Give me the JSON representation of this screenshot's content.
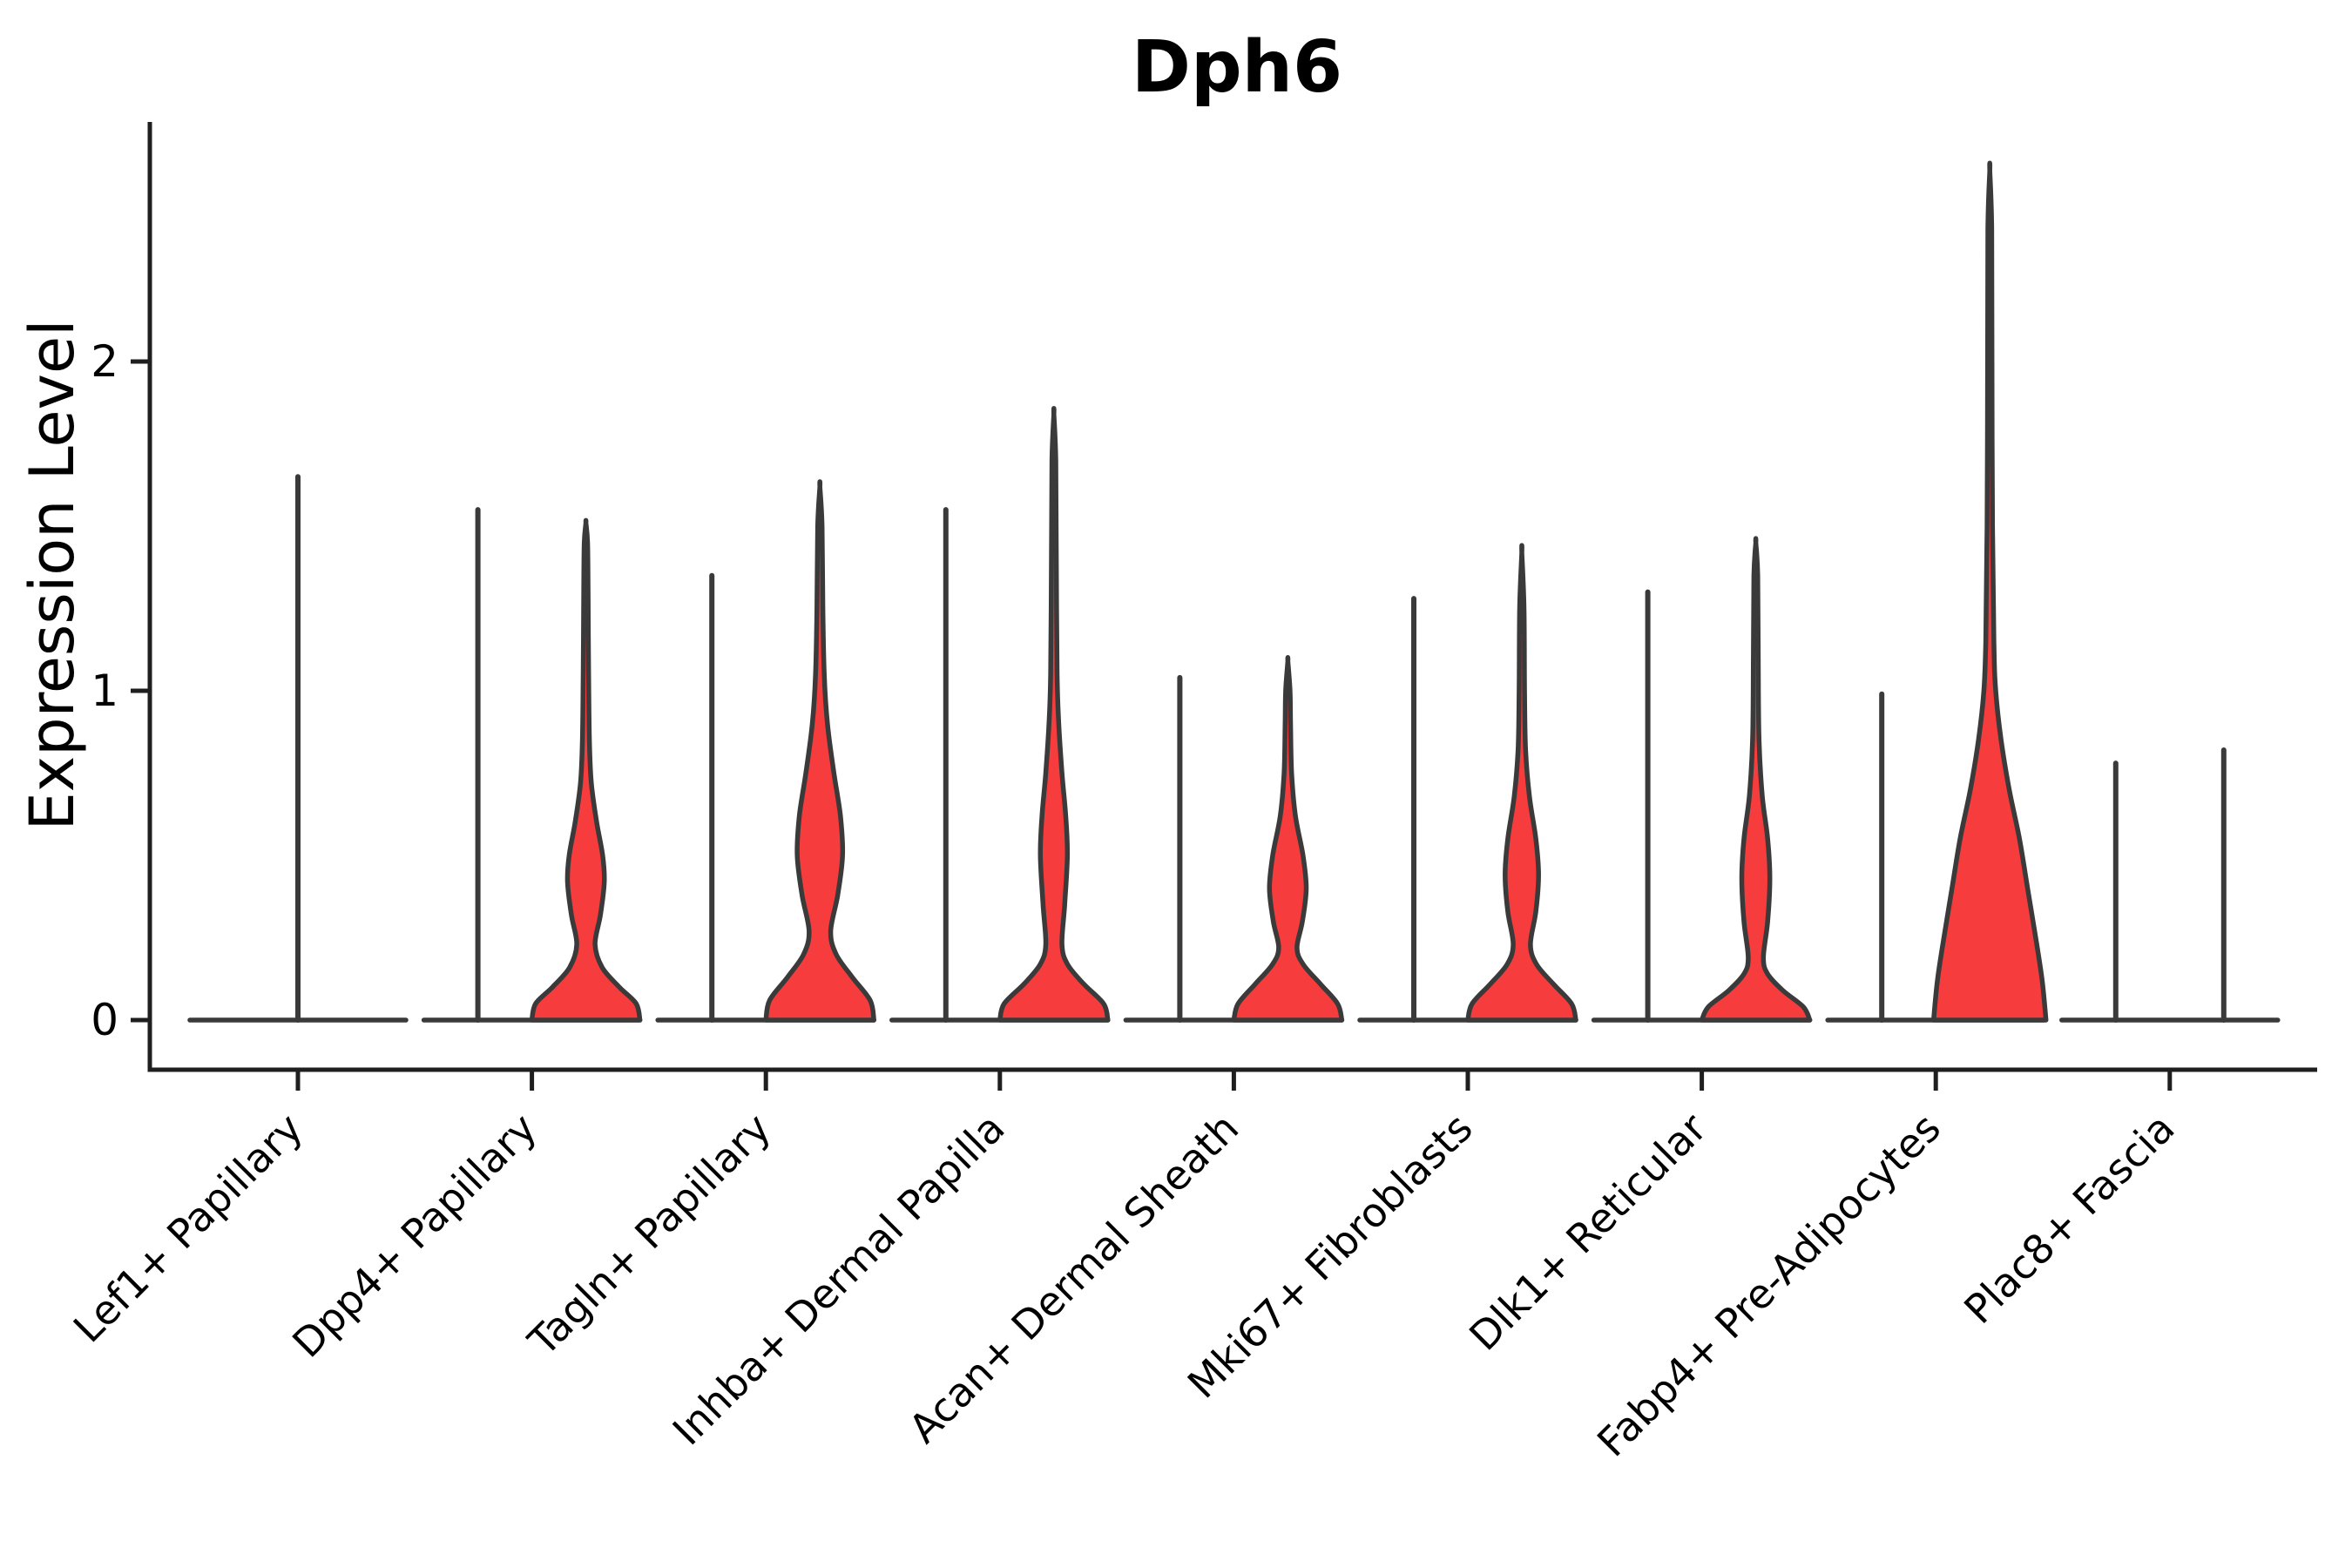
{
  "title": "Dph6",
  "y_axis": {
    "label": "Expression Level",
    "tick_labels": [
      "0",
      "1",
      "2"
    ]
  },
  "colors": {
    "violin_fill": "#f63c3c",
    "violin_stroke": "#3a3a3a",
    "axis": "#1f1f1f",
    "text": "#000000",
    "background": "#ffffff"
  },
  "chart_data": {
    "type": "violin",
    "title": "Dph6",
    "xlabel": "",
    "ylabel": "Expression Level",
    "ylim": [
      0,
      2.73
    ],
    "yticks": [
      0,
      1,
      2
    ],
    "grid": false,
    "legend": null,
    "note": "Each cell-type category shows two violins (two sample groups); left violins are near-zero spikes, right violins are red filled densities. 'max' is the maximum expression reached; 'profile' is [expression, relative half-width] density outline.",
    "categories": [
      {
        "name": "Lef1+ Papillary",
        "violins": [
          {
            "position": "center",
            "max": 1.65,
            "shape": "spike",
            "filled": false
          }
        ]
      },
      {
        "name": "Dpp4+ Papillary",
        "violins": [
          {
            "position": "left",
            "max": 1.55,
            "shape": "spike",
            "filled": false
          },
          {
            "position": "right",
            "max": 1.51,
            "shape": "density",
            "filled": true,
            "profile": [
              [
                0,
                1.0
              ],
              [
                0.05,
                0.93
              ],
              [
                0.1,
                0.62
              ],
              [
                0.16,
                0.3
              ],
              [
                0.23,
                0.17
              ],
              [
                0.32,
                0.27
              ],
              [
                0.42,
                0.34
              ],
              [
                0.5,
                0.31
              ],
              [
                0.6,
                0.2
              ],
              [
                0.72,
                0.1
              ],
              [
                0.85,
                0.065
              ],
              [
                1.05,
                0.05
              ],
              [
                1.3,
                0.04
              ],
              [
                1.45,
                0.03
              ],
              [
                1.51,
                0
              ]
            ]
          }
        ]
      },
      {
        "name": "Tagln+ Papillary",
        "violins": [
          {
            "position": "left",
            "max": 1.35,
            "shape": "spike",
            "filled": false
          },
          {
            "position": "right",
            "max": 1.62,
            "shape": "density",
            "filled": true,
            "profile": [
              [
                0,
                1.0
              ],
              [
                0.06,
                0.93
              ],
              [
                0.13,
                0.6
              ],
              [
                0.2,
                0.3
              ],
              [
                0.27,
                0.2
              ],
              [
                0.38,
                0.33
              ],
              [
                0.5,
                0.42
              ],
              [
                0.62,
                0.38
              ],
              [
                0.75,
                0.26
              ],
              [
                0.9,
                0.14
              ],
              [
                1.05,
                0.08
              ],
              [
                1.25,
                0.055
              ],
              [
                1.5,
                0.04
              ],
              [
                1.62,
                0
              ]
            ]
          }
        ]
      },
      {
        "name": "Inhba+ Dermal Papilla",
        "violins": [
          {
            "position": "left",
            "max": 1.55,
            "shape": "spike",
            "filled": false
          },
          {
            "position": "right",
            "max": 1.84,
            "shape": "density",
            "filled": true,
            "profile": [
              [
                0,
                1.0
              ],
              [
                0.05,
                0.92
              ],
              [
                0.11,
                0.55
              ],
              [
                0.17,
                0.25
              ],
              [
                0.23,
                0.15
              ],
              [
                0.35,
                0.2
              ],
              [
                0.5,
                0.25
              ],
              [
                0.62,
                0.22
              ],
              [
                0.75,
                0.15
              ],
              [
                0.9,
                0.09
              ],
              [
                1.05,
                0.06
              ],
              [
                1.4,
                0.045
              ],
              [
                1.7,
                0.035
              ],
              [
                1.84,
                0
              ]
            ]
          }
        ]
      },
      {
        "name": "Acan+ Dermal Sheath",
        "violins": [
          {
            "position": "left",
            "max": 1.04,
            "shape": "spike",
            "filled": false
          },
          {
            "position": "right",
            "max": 1.09,
            "shape": "density",
            "filled": true,
            "profile": [
              [
                0,
                1.0
              ],
              [
                0.05,
                0.92
              ],
              [
                0.11,
                0.6
              ],
              [
                0.17,
                0.28
              ],
              [
                0.22,
                0.17
              ],
              [
                0.3,
                0.27
              ],
              [
                0.4,
                0.34
              ],
              [
                0.5,
                0.28
              ],
              [
                0.62,
                0.14
              ],
              [
                0.75,
                0.07
              ],
              [
                0.9,
                0.05
              ],
              [
                1.0,
                0.04
              ],
              [
                1.09,
                0
              ]
            ]
          }
        ]
      },
      {
        "name": "Mki67+ Fibroblasts",
        "violins": [
          {
            "position": "left",
            "max": 1.28,
            "shape": "spike",
            "filled": false
          },
          {
            "position": "right",
            "max": 1.42,
            "shape": "density",
            "filled": true,
            "profile": [
              [
                0,
                1.0
              ],
              [
                0.05,
                0.92
              ],
              [
                0.11,
                0.58
              ],
              [
                0.17,
                0.27
              ],
              [
                0.23,
                0.16
              ],
              [
                0.33,
                0.26
              ],
              [
                0.44,
                0.31
              ],
              [
                0.55,
                0.26
              ],
              [
                0.68,
                0.14
              ],
              [
                0.82,
                0.07
              ],
              [
                1.0,
                0.05
              ],
              [
                1.25,
                0.04
              ],
              [
                1.42,
                0
              ]
            ]
          }
        ]
      },
      {
        "name": "Dlk1+ Reticular",
        "violins": [
          {
            "position": "left",
            "max": 1.3,
            "shape": "spike",
            "filled": false
          },
          {
            "position": "right",
            "max": 1.45,
            "shape": "density",
            "filled": true,
            "profile": [
              [
                0,
                1.0
              ],
              [
                0.04,
                0.88
              ],
              [
                0.09,
                0.5
              ],
              [
                0.14,
                0.22
              ],
              [
                0.19,
                0.14
              ],
              [
                0.3,
                0.22
              ],
              [
                0.43,
                0.26
              ],
              [
                0.55,
                0.22
              ],
              [
                0.68,
                0.12
              ],
              [
                0.85,
                0.06
              ],
              [
                1.1,
                0.045
              ],
              [
                1.35,
                0.035
              ],
              [
                1.45,
                0
              ]
            ]
          }
        ]
      },
      {
        "name": "Fabp4+ Pre-Adipocytes",
        "violins": [
          {
            "position": "left",
            "max": 0.99,
            "shape": "spike",
            "filled": false
          },
          {
            "position": "right",
            "max": 2.58,
            "shape": "density",
            "filled": true,
            "profile": [
              [
                0,
                1.04
              ],
              [
                0.12,
                0.97
              ],
              [
                0.25,
                0.85
              ],
              [
                0.4,
                0.7
              ],
              [
                0.55,
                0.55
              ],
              [
                0.7,
                0.36
              ],
              [
                0.85,
                0.21
              ],
              [
                1.0,
                0.11
              ],
              [
                1.15,
                0.075
              ],
              [
                1.5,
                0.05
              ],
              [
                2.0,
                0.04
              ],
              [
                2.4,
                0.035
              ],
              [
                2.58,
                0
              ]
            ]
          }
        ]
      },
      {
        "name": "Plac8+ Fascia",
        "violins": [
          {
            "position": "left",
            "max": 0.78,
            "shape": "spike",
            "filled": false
          },
          {
            "position": "right",
            "max": 0.82,
            "shape": "spike",
            "filled": false
          }
        ]
      }
    ]
  }
}
